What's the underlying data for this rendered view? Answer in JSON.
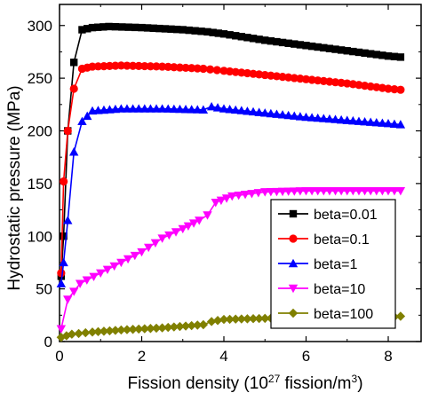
{
  "chart_data": {
    "type": "line",
    "title": "",
    "xlabel": {
      "main": "Fission density (10",
      "sup1": "27",
      "mid": " fission/m",
      "sup2": "3",
      "end": ")"
    },
    "ylabel": "Hydrostatic pressure (MPa)",
    "xlim": [
      0,
      8.8
    ],
    "ylim": [
      0,
      320
    ],
    "xticks": [
      0,
      2,
      4,
      6,
      8
    ],
    "yticks": [
      0,
      50,
      100,
      150,
      200,
      250,
      300
    ],
    "legend_position": "right-center",
    "series": [
      {
        "name": "beta=0.01",
        "color": "#000000",
        "marker": "square",
        "points": [
          [
            0.04,
            62
          ],
          [
            0.1,
            100
          ],
          [
            0.2,
            200
          ],
          [
            0.35,
            265
          ],
          [
            0.55,
            296
          ],
          [
            0.8,
            298
          ],
          [
            1.2,
            299
          ],
          [
            2,
            298
          ],
          [
            3,
            296
          ],
          [
            3.6,
            294
          ],
          [
            4,
            292
          ],
          [
            5,
            286
          ],
          [
            6,
            281
          ],
          [
            7,
            276
          ],
          [
            8,
            271
          ],
          [
            8.3,
            270
          ]
        ]
      },
      {
        "name": "beta=0.1",
        "color": "#ff0000",
        "marker": "circle",
        "points": [
          [
            0.04,
            65
          ],
          [
            0.1,
            152
          ],
          [
            0.2,
            200
          ],
          [
            0.35,
            240
          ],
          [
            0.55,
            259
          ],
          [
            0.8,
            261
          ],
          [
            1.5,
            262
          ],
          [
            2.5,
            261
          ],
          [
            3.5,
            259
          ],
          [
            4,
            257
          ],
          [
            5,
            253
          ],
          [
            6,
            249
          ],
          [
            7,
            245
          ],
          [
            8,
            240
          ],
          [
            8.3,
            239
          ]
        ]
      },
      {
        "name": "beta=1",
        "color": "#0000ff",
        "marker": "triangle-up",
        "points": [
          [
            0.04,
            55
          ],
          [
            0.1,
            75
          ],
          [
            0.2,
            115
          ],
          [
            0.35,
            180
          ],
          [
            0.55,
            209
          ],
          [
            0.8,
            219
          ],
          [
            1.5,
            221
          ],
          [
            2.5,
            221
          ],
          [
            3.5,
            220
          ],
          [
            3.7,
            223
          ],
          [
            4,
            221
          ],
          [
            5,
            217
          ],
          [
            6,
            213
          ],
          [
            7,
            210
          ],
          [
            8,
            207
          ],
          [
            8.3,
            206
          ]
        ]
      },
      {
        "name": "beta=10",
        "color": "#ff00ff",
        "marker": "triangle-down",
        "points": [
          [
            0.04,
            12
          ],
          [
            0.2,
            40
          ],
          [
            0.5,
            55
          ],
          [
            1,
            65
          ],
          [
            1.5,
            75
          ],
          [
            2,
            85
          ],
          [
            2.5,
            98
          ],
          [
            3,
            107
          ],
          [
            3.4,
            115
          ],
          [
            3.6,
            120
          ],
          [
            3.8,
            132
          ],
          [
            4.2,
            138
          ],
          [
            5,
            142
          ],
          [
            6,
            143
          ],
          [
            7,
            143
          ],
          [
            8,
            143
          ],
          [
            8.3,
            143
          ]
        ]
      },
      {
        "name": "beta=100",
        "color": "#808000",
        "marker": "diamond",
        "points": [
          [
            0.04,
            4
          ],
          [
            0.3,
            7
          ],
          [
            0.8,
            9
          ],
          [
            1.5,
            11
          ],
          [
            2.5,
            13
          ],
          [
            3.5,
            16
          ],
          [
            3.7,
            19
          ],
          [
            4,
            21
          ],
          [
            5,
            22
          ],
          [
            6,
            23
          ],
          [
            7,
            23
          ],
          [
            8,
            23
          ],
          [
            8.3,
            24
          ]
        ]
      }
    ]
  }
}
